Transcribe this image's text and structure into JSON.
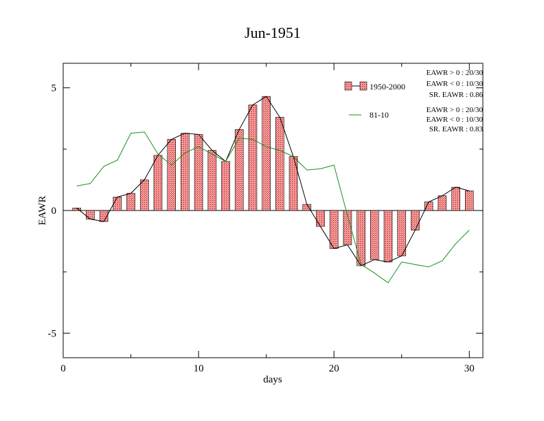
{
  "chart_data": {
    "type": "bar",
    "title": "Jun-1951",
    "xlabel": "days",
    "ylabel": "EAWR",
    "xlim": [
      0,
      31
    ],
    "ylim": [
      -6,
      6
    ],
    "x_ticks": [
      0,
      10,
      20,
      30
    ],
    "y_ticks": [
      -5,
      0,
      5
    ],
    "x_tick_labels": [
      "0",
      "10",
      "20",
      "30"
    ],
    "y_tick_labels": [
      "-5",
      "0",
      "5"
    ],
    "grid": false,
    "legend_placement": "top-right",
    "colors": {
      "bar_fill": "#f4a0a0",
      "bar_hatch": "#cc2222",
      "line_black": "#000000",
      "line_green": "#1a8c1a"
    },
    "days": [
      1,
      2,
      3,
      4,
      5,
      6,
      7,
      8,
      9,
      10,
      11,
      12,
      13,
      14,
      15,
      16,
      17,
      18,
      19,
      20,
      21,
      22,
      23,
      24,
      25,
      26,
      27,
      28,
      29,
      30
    ],
    "series": [
      {
        "name": "1950-2000",
        "style": "bars-with-line",
        "values": [
          0.1,
          -0.35,
          -0.45,
          0.55,
          0.7,
          1.25,
          2.25,
          2.9,
          3.15,
          3.1,
          2.45,
          2.0,
          3.3,
          4.3,
          4.65,
          3.8,
          2.2,
          0.25,
          -0.65,
          -1.55,
          -1.4,
          -2.25,
          -2.0,
          -2.1,
          -1.85,
          -0.8,
          0.35,
          0.6,
          0.95,
          0.8
        ]
      },
      {
        "name": "81-10",
        "style": "line",
        "values": [
          1.0,
          1.1,
          1.8,
          2.05,
          3.15,
          3.2,
          2.3,
          1.85,
          2.35,
          2.6,
          2.3,
          2.0,
          2.95,
          2.9,
          2.6,
          2.45,
          2.2,
          1.65,
          1.7,
          1.85,
          -0.2,
          -2.2,
          -2.55,
          -2.95,
          -2.1,
          -2.2,
          -2.3,
          -2.05,
          -1.35,
          -0.8
        ]
      }
    ],
    "legend": [
      {
        "label": "1950-2000",
        "stats": [
          "EAWR > 0 : 20/30",
          "EAWR < 0 : 10/30",
          "SR. EAWR :  0.86"
        ]
      },
      {
        "label": "81-10",
        "stats": [
          "EAWR > 0 : 20/30",
          "EAWR < 0 : 10/30",
          "SR. EAWR :  0.83"
        ]
      }
    ]
  }
}
